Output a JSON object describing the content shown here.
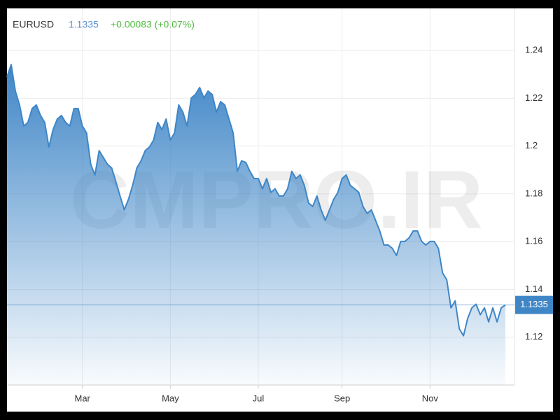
{
  "chart_data": {
    "type": "area",
    "symbol": "EURUSD",
    "price": "1.1335",
    "change": "+0.00083 (+0.07%)",
    "watermark": "CMPRO.IR",
    "color": "#3f86c7",
    "price_color": "#5a8fcb",
    "change_color": "#4cbb3c",
    "grid": true,
    "ylim": [
      1.1,
      1.2576
    ],
    "yticks": [
      1.12,
      1.14,
      1.16,
      1.18,
      1.2,
      1.22,
      1.24
    ],
    "categories": [
      null,
      null,
      null,
      null,
      null,
      null,
      null,
      null,
      null,
      null,
      null,
      null,
      null,
      null,
      null,
      null,
      null,
      null,
      "Mar",
      null,
      null,
      null,
      null,
      null,
      null,
      null,
      null,
      null,
      null,
      null,
      null,
      null,
      null,
      null,
      null,
      null,
      null,
      null,
      null,
      "May",
      null,
      null,
      null,
      null,
      null,
      null,
      null,
      null,
      null,
      null,
      null,
      null,
      null,
      null,
      null,
      null,
      null,
      null,
      null,
      null,
      "Jul",
      null,
      null,
      null,
      null,
      null,
      null,
      null,
      null,
      null,
      null,
      null,
      null,
      null,
      null,
      null,
      null,
      null,
      null,
      null,
      "Sep",
      null,
      null,
      null,
      null,
      null,
      null,
      null,
      null,
      null,
      null,
      null,
      null,
      null,
      null,
      null,
      null,
      null,
      null,
      null,
      null,
      "Nov",
      null,
      null,
      null,
      null,
      null,
      null,
      null,
      null,
      null,
      null,
      null,
      null,
      null,
      null,
      null,
      null,
      null,
      null
    ],
    "values": [
      1.2289,
      1.2341,
      1.223,
      1.2172,
      1.2084,
      1.2099,
      1.2157,
      1.2172,
      1.2128,
      1.2099,
      1.1996,
      1.2069,
      1.2113,
      1.2128,
      1.2099,
      1.2084,
      1.2157,
      1.2157,
      1.2084,
      1.2055,
      1.1923,
      1.1879,
      1.1981,
      1.1952,
      1.1923,
      1.1908,
      1.185,
      1.1791,
      1.1733,
      1.1777,
      1.1835,
      1.1908,
      1.1938,
      1.1981,
      1.1996,
      1.2025,
      1.2099,
      1.2069,
      1.2113,
      1.2025,
      1.2055,
      1.2172,
      1.2142,
      1.2084,
      1.2201,
      1.2216,
      1.2245,
      1.2201,
      1.223,
      1.2216,
      1.2142,
      1.2186,
      1.2172,
      1.2113,
      1.2055,
      1.1894,
      1.1938,
      1.1932,
      1.1894,
      1.1864,
      1.1864,
      1.1821,
      1.1864,
      1.1806,
      1.1821,
      1.1791,
      1.1791,
      1.1821,
      1.1894,
      1.1864,
      1.1879,
      1.1835,
      1.1762,
      1.1747,
      1.1791,
      1.1733,
      1.1689,
      1.1733,
      1.1777,
      1.1806,
      1.1864,
      1.1879,
      1.1835,
      1.1821,
      1.1806,
      1.1747,
      1.1718,
      1.1733,
      1.1689,
      1.1645,
      1.1586,
      1.1586,
      1.1572,
      1.1542,
      1.1601,
      1.1601,
      1.1616,
      1.1645,
      1.1645,
      1.1601,
      1.1586,
      1.1601,
      1.1601,
      1.1572,
      1.1469,
      1.144,
      1.1323,
      1.1352,
      1.1235,
      1.1206,
      1.1279,
      1.1323,
      1.1338,
      1.1294,
      1.1323,
      1.1264,
      1.1323,
      1.1264,
      1.1323,
      1.1335
    ]
  }
}
